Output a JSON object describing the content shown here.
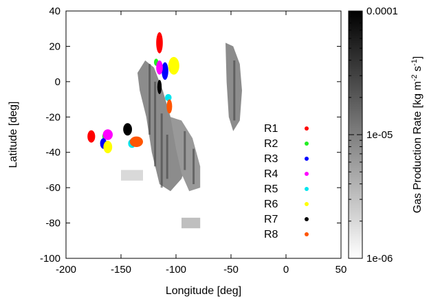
{
  "chart_data": {
    "type": "heatmap",
    "title": "",
    "xlabel": "Longitude [deg]",
    "ylabel": "Latitude [deg]",
    "xlim": [
      -200,
      50
    ],
    "ylim": [
      -100,
      40
    ],
    "xticks": [
      -200,
      -150,
      -100,
      -50,
      0,
      50
    ],
    "yticks": [
      40,
      20,
      0,
      -20,
      -40,
      -60,
      -80,
      -100
    ],
    "x_tick_labels": [
      "-200",
      "-150",
      "-100",
      "-50",
      "0",
      "50"
    ],
    "y_tick_labels": [
      "40",
      "20",
      "0",
      "-20",
      "-40",
      "-60",
      "-80",
      "-100"
    ],
    "colorbar": {
      "label": "Gas Production Rate [kg m^-2 s^-1]",
      "label_main": "Gas Production Rate [kg m",
      "label_exp1": "-2",
      "label_mid": " s",
      "label_exp2": "-1",
      "label_end": "]",
      "scale": "log",
      "min": 1e-06,
      "max": 0.0001,
      "tick_labels": [
        "0.0001",
        "1e-05",
        "1e-06"
      ],
      "colors": [
        "#ffffff",
        "#000000"
      ]
    },
    "heatmap_regions": [
      {
        "polygon": [
          [
            -128,
            12
          ],
          [
            -120,
            8
          ],
          [
            -112,
            -5
          ],
          [
            -105,
            -20
          ],
          [
            -95,
            -30
          ],
          [
            -88,
            -42
          ],
          [
            -95,
            -55
          ],
          [
            -105,
            -62
          ],
          [
            -115,
            -58
          ],
          [
            -122,
            -40
          ],
          [
            -127,
            -20
          ],
          [
            -133,
            -5
          ],
          [
            -135,
            5
          ]
        ],
        "level": 0.45
      },
      {
        "polygon": [
          [
            -105,
            -20
          ],
          [
            -95,
            -22
          ],
          [
            -85,
            -32
          ],
          [
            -78,
            -48
          ],
          [
            -78,
            -60
          ],
          [
            -88,
            -62
          ],
          [
            -95,
            -52
          ],
          [
            -100,
            -38
          ]
        ],
        "level": 0.4
      },
      {
        "polygon": [
          [
            -55,
            22
          ],
          [
            -48,
            20
          ],
          [
            -42,
            10
          ],
          [
            -40,
            -5
          ],
          [
            -42,
            -22
          ],
          [
            -48,
            -28
          ],
          [
            -52,
            -20
          ],
          [
            -54,
            0
          ]
        ],
        "level": 0.45
      },
      {
        "polygon": [
          [
            -150,
            -50
          ],
          [
            -130,
            -50
          ],
          [
            -130,
            -56
          ],
          [
            -150,
            -56
          ]
        ],
        "level": 0.15
      },
      {
        "polygon": [
          [
            -95,
            -77
          ],
          [
            -78,
            -77
          ],
          [
            -78,
            -83
          ],
          [
            -95,
            -83
          ]
        ],
        "level": 0.25
      }
    ],
    "heatmap_streaks": [
      {
        "x": -124,
        "y1": 10,
        "y2": -30
      },
      {
        "x": -119,
        "y1": 0,
        "y2": -48
      },
      {
        "x": -113,
        "y1": -18,
        "y2": -60
      },
      {
        "x": -108,
        "y1": -30,
        "y2": -55
      },
      {
        "x": -92,
        "y1": -28,
        "y2": -50
      },
      {
        "x": -84,
        "y1": -38,
        "y2": -58
      },
      {
        "x": -47,
        "y1": 12,
        "y2": -22
      }
    ],
    "series": [
      {
        "name": "R1",
        "color": "#ff0000",
        "blobs": [
          {
            "x": -115,
            "y": 22,
            "rx": 3,
            "ry": 6
          },
          {
            "x": -177,
            "y": -31,
            "rx": 3.5,
            "ry": 3.5
          }
        ]
      },
      {
        "name": "R2",
        "color": "#22ee22",
        "blobs": [
          {
            "x": -118,
            "y": 11,
            "rx": 2,
            "ry": 2
          },
          {
            "x": -165,
            "y": -31,
            "rx": 2,
            "ry": 2
          }
        ]
      },
      {
        "name": "R3",
        "color": "#0000ff",
        "blobs": [
          {
            "x": -110,
            "y": 6,
            "rx": 3,
            "ry": 5
          },
          {
            "x": -166,
            "y": -35,
            "rx": 3,
            "ry": 3
          }
        ]
      },
      {
        "name": "R4",
        "color": "#ff00ff",
        "blobs": [
          {
            "x": -115,
            "y": 8,
            "rx": 3,
            "ry": 4
          },
          {
            "x": -162,
            "y": -30,
            "rx": 4.5,
            "ry": 3
          }
        ]
      },
      {
        "name": "R5",
        "color": "#00e5ee",
        "blobs": [
          {
            "x": -107,
            "y": -9,
            "rx": 3,
            "ry": 2
          },
          {
            "x": -140,
            "y": -35,
            "rx": 3.5,
            "ry": 2.5
          }
        ]
      },
      {
        "name": "R6",
        "color": "#ffff00",
        "blobs": [
          {
            "x": -102,
            "y": 9,
            "rx": 5,
            "ry": 5
          },
          {
            "x": -162,
            "y": -37,
            "rx": 4,
            "ry": 3.5
          }
        ]
      },
      {
        "name": "R7",
        "color": "#000000",
        "blobs": [
          {
            "x": -115,
            "y": -3,
            "rx": 2,
            "ry": 4
          },
          {
            "x": -144,
            "y": -27,
            "rx": 4,
            "ry": 3.5
          }
        ]
      },
      {
        "name": "R8",
        "color": "#ff5500",
        "blobs": [
          {
            "x": -106,
            "y": -14,
            "rx": 2.5,
            "ry": 4
          },
          {
            "x": -136,
            "y": -34,
            "rx": 6,
            "ry": 3
          }
        ]
      }
    ],
    "legend_position": "bottom-right"
  }
}
